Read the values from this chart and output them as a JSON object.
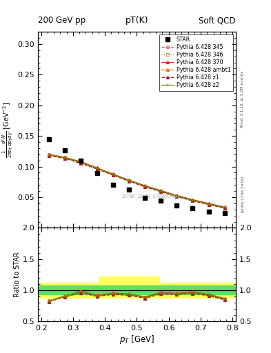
{
  "title_top_left": "200 GeV pp",
  "title_top_right": "Soft QCD",
  "plot_title": "pT(K)",
  "xlabel": "p_{T} [GeV]",
  "ylabel_ratio": "Ratio to STAR",
  "watermark": "(STAR_2008_S7869363)",
  "right_label1": "Rivet 3.1.10, ≥ 3.2M events",
  "right_label2": "[arXiv:1306.3436]",
  "star_pt": [
    0.225,
    0.275,
    0.325,
    0.375,
    0.425,
    0.475,
    0.525,
    0.575,
    0.625,
    0.675,
    0.725,
    0.775
  ],
  "star_y": [
    0.145,
    0.127,
    0.11,
    0.089,
    0.07,
    0.062,
    0.049,
    0.044,
    0.037,
    0.032,
    0.026,
    0.024
  ],
  "star_yerr": [
    0.004,
    0.003,
    0.003,
    0.003,
    0.002,
    0.002,
    0.002,
    0.002,
    0.001,
    0.001,
    0.001,
    0.001
  ],
  "mc_pt": [
    0.225,
    0.275,
    0.325,
    0.375,
    0.425,
    0.475,
    0.525,
    0.575,
    0.625,
    0.675,
    0.725,
    0.775
  ],
  "mc_345_y": [
    0.12,
    0.115,
    0.107,
    0.097,
    0.087,
    0.077,
    0.068,
    0.06,
    0.052,
    0.045,
    0.039,
    0.033
  ],
  "mc_346_y": [
    0.119,
    0.114,
    0.106,
    0.097,
    0.087,
    0.077,
    0.067,
    0.059,
    0.051,
    0.044,
    0.038,
    0.032
  ],
  "mc_370_y": [
    0.12,
    0.115,
    0.108,
    0.098,
    0.088,
    0.078,
    0.069,
    0.061,
    0.053,
    0.046,
    0.04,
    0.034
  ],
  "mc_ambt1_y": [
    0.12,
    0.115,
    0.107,
    0.097,
    0.087,
    0.077,
    0.068,
    0.06,
    0.052,
    0.045,
    0.039,
    0.033
  ],
  "mc_z1_y": [
    0.118,
    0.113,
    0.105,
    0.096,
    0.086,
    0.076,
    0.067,
    0.059,
    0.051,
    0.044,
    0.038,
    0.032
  ],
  "mc_z2_y": [
    0.119,
    0.114,
    0.107,
    0.097,
    0.087,
    0.077,
    0.068,
    0.06,
    0.052,
    0.045,
    0.039,
    0.033
  ],
  "ratio_345": [
    0.828,
    0.906,
    0.973,
    0.91,
    0.943,
    0.93,
    0.882,
    0.952,
    0.94,
    0.96,
    0.923,
    0.856
  ],
  "ratio_346": [
    0.821,
    0.898,
    0.964,
    0.906,
    0.937,
    0.921,
    0.875,
    0.944,
    0.933,
    0.953,
    0.916,
    0.848
  ],
  "ratio_370": [
    0.828,
    0.906,
    0.982,
    0.919,
    0.952,
    0.94,
    0.892,
    0.963,
    0.95,
    0.97,
    0.934,
    0.866
  ],
  "ratio_ambt1": [
    0.828,
    0.906,
    0.973,
    0.912,
    0.943,
    0.93,
    0.882,
    0.952,
    0.94,
    0.96,
    0.923,
    0.856
  ],
  "ratio_z1": [
    0.814,
    0.891,
    0.955,
    0.9,
    0.93,
    0.916,
    0.869,
    0.937,
    0.926,
    0.946,
    0.91,
    0.842
  ],
  "ratio_z2": [
    0.821,
    0.899,
    0.973,
    0.91,
    0.943,
    0.93,
    0.882,
    0.952,
    0.94,
    0.96,
    0.923,
    0.856
  ],
  "ylim_main": [
    0.0,
    0.32
  ],
  "ylim_ratio": [
    0.5,
    2.0
  ],
  "xlim": [
    0.19,
    0.81
  ],
  "color_345": "#e06060",
  "color_346": "#c8963c",
  "color_370": "#c83232",
  "color_ambt1": "#d08000",
  "color_z1": "#a02020",
  "color_z2": "#708000",
  "yticks_main": [
    0.05,
    0.1,
    0.15,
    0.2,
    0.25,
    0.3
  ],
  "yticks_ratio": [
    0.5,
    1.0,
    1.5,
    2.0
  ],
  "xticks": [
    0.2,
    0.3,
    0.4,
    0.5,
    0.6,
    0.7,
    0.8
  ],
  "band_yellow": {
    "xmin": 0.19,
    "xmax": 0.81,
    "ylo": 0.88,
    "yhi": 1.12
  },
  "band_yellow2": {
    "xmin": 0.38,
    "xmax": 0.57,
    "ylo": 1.12,
    "yhi": 1.22
  },
  "band_green": {
    "xmin": 0.19,
    "xmax": 0.81,
    "ylo": 0.93,
    "yhi": 1.07
  }
}
